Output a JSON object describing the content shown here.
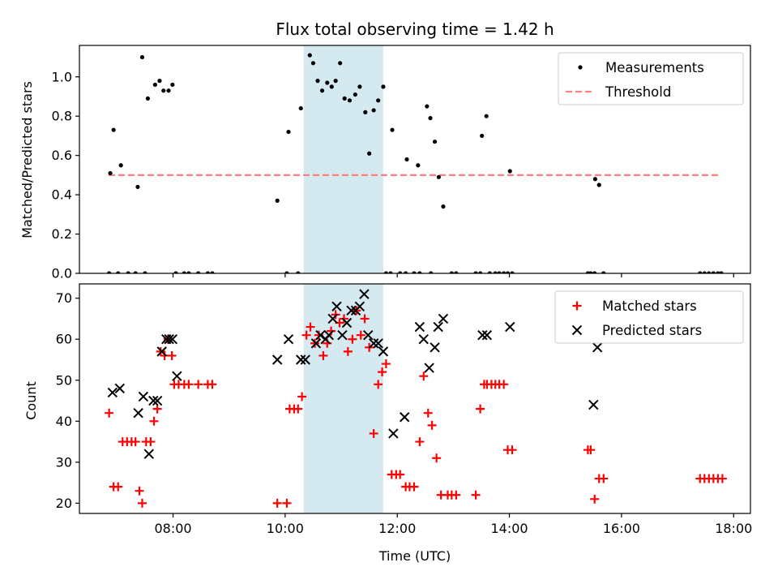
{
  "chart_data": [
    {
      "type": "scatter",
      "title": "Flux total observing time = 1.42 h",
      "xlabel": "",
      "ylabel": "Matched/Predicted stars",
      "xlim": [
        6.33,
        18.3
      ],
      "ylim": [
        0,
        1.16
      ],
      "y_ticks": [
        0.0,
        0.2,
        0.4,
        0.6,
        0.8,
        1.0
      ],
      "y_tick_labels": [
        "0.0",
        "0.2",
        "0.4",
        "0.6",
        "0.8",
        "1.0"
      ],
      "x_ticks": [
        8,
        10,
        12,
        14,
        16,
        18
      ],
      "x_tick_labels": [],
      "highlight_span": [
        10.33,
        11.75
      ],
      "highlight_color": "#d4eaf0",
      "legend_position": "upper right",
      "legend": [
        {
          "label": "Measurements",
          "marker": "dot",
          "color": "#000000"
        },
        {
          "label": "Threshold",
          "marker": "dashed-line",
          "color": "#ff7f7f"
        }
      ],
      "threshold": {
        "name": "Threshold",
        "y": 0.5,
        "x_range": [
          6.85,
          17.78
        ],
        "color": "#ff7f7f"
      },
      "series": [
        {
          "name": "Measurements",
          "color": "#000000",
          "x": [
            6.88,
            6.94,
            7.07,
            7.37,
            7.45,
            7.55,
            7.68,
            7.76,
            7.83,
            7.92,
            7.99,
            8.05,
            9.86,
            10.06,
            10.28,
            10.44,
            10.5,
            10.58,
            10.66,
            10.75,
            10.83,
            10.9,
            10.98,
            11.06,
            11.15,
            11.25,
            11.33,
            11.43,
            11.5,
            11.58,
            11.66,
            11.75,
            11.91,
            12.17,
            12.37,
            12.53,
            12.59,
            12.67,
            12.74,
            12.82,
            13.51,
            13.59,
            14.01,
            15.53,
            15.6,
            6.86,
            7.02,
            7.2,
            7.33,
            7.5,
            8.2,
            8.28,
            8.45,
            8.62,
            8.7,
            10.03,
            10.23,
            11.8,
            11.88,
            12.05,
            12.15,
            12.3,
            12.4,
            12.6,
            12.97,
            13.05,
            13.4,
            13.48,
            13.65,
            13.75,
            13.82,
            13.9,
            13.97,
            14.05,
            15.4,
            15.45,
            15.52,
            15.68,
            17.4,
            17.48,
            17.56,
            17.64,
            17.72,
            17.78
          ],
          "y": [
            0.51,
            0.73,
            0.55,
            0.44,
            1.1,
            0.89,
            0.96,
            0.98,
            0.93,
            0.93,
            0.96,
            0.0,
            0.37,
            0.72,
            0.84,
            1.11,
            1.07,
            0.98,
            0.93,
            0.97,
            0.95,
            0.98,
            1.07,
            0.89,
            0.88,
            0.91,
            0.95,
            0.82,
            0.61,
            0.83,
            0.88,
            0.95,
            0.73,
            0.58,
            0.55,
            0.85,
            0.79,
            0.67,
            0.49,
            0.34,
            0.7,
            0.8,
            0.52,
            0.48,
            0.45,
            0,
            0,
            0,
            0,
            0,
            0,
            0,
            0,
            0,
            0,
            0,
            0,
            0,
            0,
            0,
            0,
            0,
            0,
            0,
            0,
            0,
            0,
            0,
            0,
            0,
            0,
            0,
            0,
            0,
            0,
            0,
            0,
            0,
            0,
            0,
            0,
            0,
            0,
            0
          ]
        }
      ]
    },
    {
      "type": "scatter",
      "title": "",
      "xlabel": "Time (UTC)",
      "ylabel": "Count",
      "xlim": [
        6.33,
        18.3
      ],
      "ylim": [
        17.5,
        73.5
      ],
      "y_ticks": [
        20,
        30,
        40,
        50,
        60,
        70
      ],
      "y_tick_labels": [
        "20",
        "30",
        "40",
        "50",
        "60",
        "70"
      ],
      "x_ticks": [
        8,
        10,
        12,
        14,
        16,
        18
      ],
      "x_tick_labels": [
        "08:00",
        "10:00",
        "12:00",
        "14:00",
        "16:00",
        "18:00"
      ],
      "highlight_span": [
        10.33,
        11.75
      ],
      "highlight_color": "#d4eaf0",
      "legend_position": "upper right",
      "legend": [
        {
          "label": "Matched stars",
          "marker": "plus",
          "color": "#ff0000"
        },
        {
          "label": "Predicted stars",
          "marker": "x",
          "color": "#000000"
        }
      ],
      "series": [
        {
          "name": "Matched stars",
          "color": "#ff0000",
          "x": [
            6.86,
            6.94,
            7.02,
            7.1,
            7.18,
            7.26,
            7.33,
            7.4,
            7.45,
            7.52,
            7.6,
            7.66,
            7.72,
            7.78,
            7.85,
            7.91,
            7.98,
            8.02,
            8.1,
            8.2,
            8.28,
            8.45,
            8.62,
            8.7,
            9.86,
            10.03,
            10.08,
            10.16,
            10.23,
            10.3,
            10.38,
            10.45,
            10.53,
            10.6,
            10.68,
            10.75,
            10.82,
            10.9,
            10.97,
            11.05,
            11.12,
            11.2,
            11.27,
            11.35,
            11.42,
            11.5,
            11.58,
            11.66,
            11.73,
            11.8,
            11.9,
            11.98,
            12.05,
            12.15,
            12.22,
            12.3,
            12.4,
            12.47,
            12.55,
            12.62,
            12.7,
            12.78,
            12.9,
            12.97,
            13.05,
            13.4,
            13.48,
            13.55,
            13.6,
            13.68,
            13.75,
            13.82,
            13.9,
            13.97,
            14.05,
            15.4,
            15.45,
            15.52,
            15.6,
            15.68,
            17.4,
            17.48,
            17.56,
            17.64,
            17.72,
            17.8
          ],
          "y": [
            42,
            24,
            24,
            35,
            35,
            35,
            35,
            23,
            20,
            35,
            35,
            40,
            43,
            57,
            56,
            60,
            56,
            49,
            49,
            49,
            49,
            49,
            49,
            49,
            20,
            20,
            43,
            43,
            43,
            46,
            61,
            63,
            59,
            61,
            56,
            59,
            62,
            66,
            64,
            65,
            57,
            60,
            67,
            61,
            65,
            58,
            37,
            49,
            52,
            54,
            27,
            27,
            27,
            24,
            24,
            24,
            35,
            51,
            42,
            39,
            31,
            22,
            22,
            22,
            22,
            22,
            43,
            49,
            49,
            49,
            49,
            49,
            49,
            33,
            33,
            33,
            33,
            21,
            26,
            26,
            26,
            26,
            26,
            26,
            26,
            26
          ]
        },
        {
          "name": "Predicted stars",
          "color": "#000000",
          "x": [
            6.92,
            7.05,
            7.38,
            7.47,
            7.57,
            7.65,
            7.72,
            7.8,
            7.88,
            7.93,
            7.99,
            8.07,
            9.86,
            10.06,
            10.28,
            10.36,
            10.55,
            10.63,
            10.72,
            10.78,
            10.85,
            10.92,
            11.02,
            11.1,
            11.18,
            11.26,
            11.33,
            11.41,
            11.48,
            11.58,
            11.66,
            11.75,
            11.93,
            12.13,
            12.4,
            12.47,
            12.57,
            12.67,
            12.73,
            12.82,
            13.52,
            13.6,
            14.01,
            15.5,
            15.57
          ],
          "y": [
            47,
            48,
            42,
            46,
            32,
            45,
            45,
            57,
            60,
            60,
            60,
            51,
            55,
            60,
            55,
            55,
            59,
            61,
            60,
            61,
            65,
            68,
            61,
            64,
            67,
            67,
            68,
            71,
            61,
            59,
            59,
            57,
            37,
            41,
            63,
            60,
            53,
            58,
            63,
            65,
            61,
            61,
            63,
            44,
            58
          ]
        }
      ]
    }
  ]
}
